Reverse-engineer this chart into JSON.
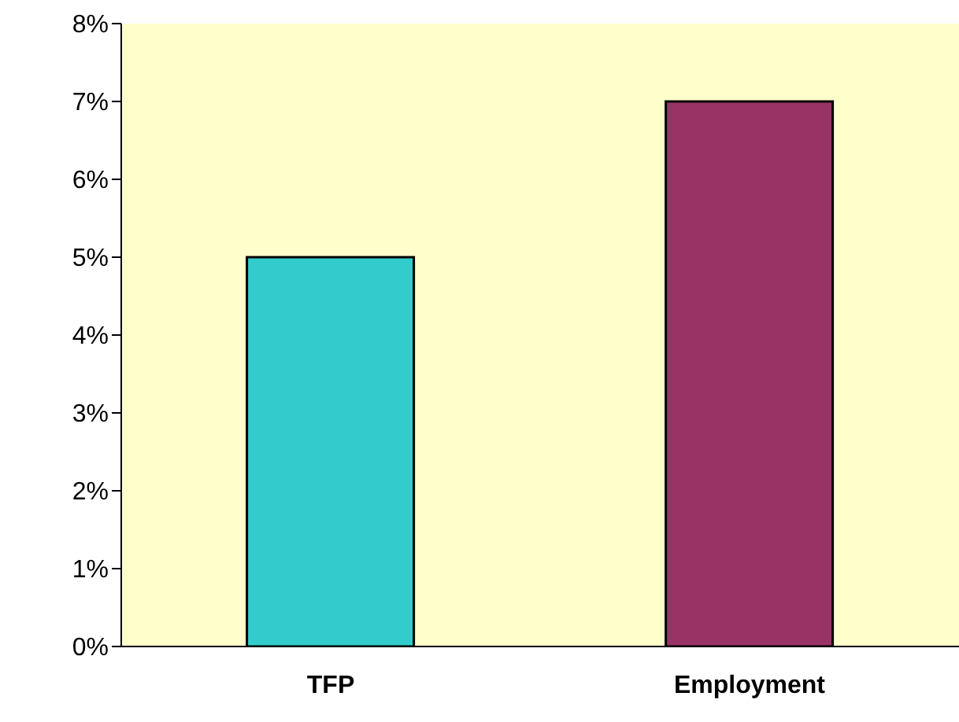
{
  "chart_data": {
    "type": "bar",
    "categories": [
      "TFP",
      "Employment"
    ],
    "values": [
      5,
      7
    ],
    "colors": [
      "#33cccc",
      "#993366"
    ],
    "ylim": [
      0,
      8
    ],
    "yticks": [
      {
        "value": 0,
        "label": "0%"
      },
      {
        "value": 1,
        "label": "1%"
      },
      {
        "value": 2,
        "label": "2%"
      },
      {
        "value": 3,
        "label": "3%"
      },
      {
        "value": 4,
        "label": "4%"
      },
      {
        "value": 5,
        "label": "5%"
      },
      {
        "value": 6,
        "label": "6%"
      },
      {
        "value": 7,
        "label": "7%"
      },
      {
        "value": 8,
        "label": "8%"
      }
    ]
  }
}
